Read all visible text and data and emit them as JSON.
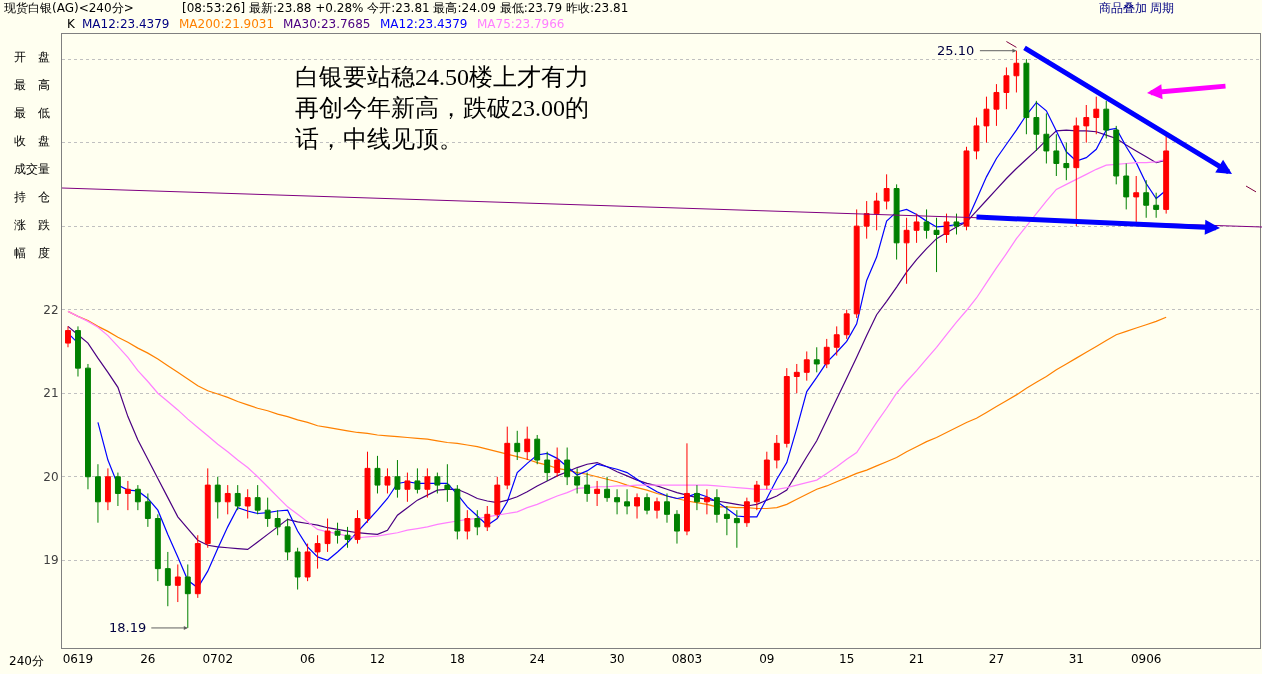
{
  "chart_data": {
    "type": "candlestick",
    "title": "现货白银(AG)<240分>",
    "subtitle": "[08:53:26] 最新:23.88 +0.28% 今开:23.81 最高:24.09 最低:23.79 昨收:23.81",
    "categories": [
      null,
      "0619",
      null,
      null,
      null,
      null,
      null,
      null,
      "26",
      null,
      null,
      null,
      null,
      null,
      null,
      "0702",
      null,
      null,
      null,
      null,
      null,
      null,
      null,
      null,
      "06",
      null,
      null,
      null,
      null,
      null,
      null,
      "12",
      null,
      null,
      null,
      null,
      null,
      null,
      null,
      "18",
      null,
      null,
      null,
      null,
      null,
      null,
      null,
      "24",
      null,
      null,
      null,
      null,
      null,
      null,
      null,
      "30",
      null,
      null,
      null,
      null,
      null,
      null,
      "0803",
      null,
      null,
      null,
      null,
      null,
      null,
      null,
      "09",
      null,
      null,
      null,
      null,
      null,
      null,
      null,
      "15",
      null,
      null,
      null,
      null,
      null,
      null,
      "21",
      null,
      null,
      null,
      null,
      null,
      null,
      null,
      "27",
      null,
      null,
      null,
      null,
      null,
      null,
      null,
      "31",
      null,
      null,
      null,
      null,
      null,
      null,
      "0906",
      null,
      null,
      null,
      null,
      null,
      null,
      null,
      null,
      null,
      null,
      null
    ],
    "ohlc": [
      [
        21.6,
        21.8,
        21.55,
        21.75
      ],
      [
        21.75,
        21.8,
        21.2,
        21.3
      ],
      [
        21.3,
        21.35,
        19.85,
        20.0
      ],
      [
        20.0,
        20.15,
        19.45,
        19.7
      ],
      [
        19.7,
        20.1,
        19.6,
        20.0
      ],
      [
        20.0,
        20.05,
        19.65,
        19.8
      ],
      [
        19.8,
        19.95,
        19.6,
        19.85
      ],
      [
        19.85,
        19.9,
        19.6,
        19.7
      ],
      [
        19.7,
        19.8,
        19.4,
        19.5
      ],
      [
        19.5,
        19.55,
        18.75,
        18.9
      ],
      [
        18.9,
        19.1,
        18.45,
        18.7
      ],
      [
        18.7,
        18.95,
        18.5,
        18.8
      ],
      [
        18.8,
        18.95,
        18.19,
        18.6
      ],
      [
        18.6,
        19.3,
        18.55,
        19.2
      ],
      [
        19.2,
        20.1,
        19.15,
        19.9
      ],
      [
        19.9,
        20.0,
        19.5,
        19.7
      ],
      [
        19.7,
        19.9,
        19.55,
        19.8
      ],
      [
        19.8,
        19.9,
        19.6,
        19.65
      ],
      [
        19.65,
        19.85,
        19.5,
        19.75
      ],
      [
        19.75,
        19.9,
        19.55,
        19.6
      ],
      [
        19.6,
        19.75,
        19.4,
        19.5
      ],
      [
        19.5,
        19.6,
        19.3,
        19.4
      ],
      [
        19.4,
        19.5,
        19.0,
        19.1
      ],
      [
        19.1,
        19.15,
        18.65,
        18.8
      ],
      [
        18.8,
        19.2,
        18.75,
        19.1
      ],
      [
        19.1,
        19.3,
        18.9,
        19.2
      ],
      [
        19.2,
        19.5,
        19.1,
        19.35
      ],
      [
        19.35,
        19.45,
        19.2,
        19.3
      ],
      [
        19.3,
        19.4,
        19.15,
        19.25
      ],
      [
        19.25,
        19.6,
        19.2,
        19.5
      ],
      [
        19.5,
        20.3,
        19.45,
        20.1
      ],
      [
        20.1,
        20.25,
        19.8,
        19.9
      ],
      [
        19.9,
        20.1,
        19.8,
        20.0
      ],
      [
        20.0,
        20.2,
        19.75,
        19.85
      ],
      [
        19.85,
        20.05,
        19.7,
        19.95
      ],
      [
        19.95,
        20.1,
        19.8,
        19.85
      ],
      [
        19.85,
        20.1,
        19.75,
        20.0
      ],
      [
        20.0,
        20.05,
        19.8,
        19.9
      ],
      [
        19.9,
        20.15,
        19.7,
        19.85
      ],
      [
        19.85,
        19.9,
        19.25,
        19.35
      ],
      [
        19.35,
        19.6,
        19.25,
        19.5
      ],
      [
        19.5,
        19.6,
        19.3,
        19.4
      ],
      [
        19.4,
        19.65,
        19.35,
        19.55
      ],
      [
        19.55,
        20.0,
        19.5,
        19.9
      ],
      [
        19.9,
        20.6,
        19.85,
        20.4
      ],
      [
        20.4,
        20.55,
        20.2,
        20.3
      ],
      [
        20.3,
        20.6,
        20.2,
        20.45
      ],
      [
        20.45,
        20.5,
        20.15,
        20.2
      ],
      [
        20.2,
        20.3,
        19.95,
        20.05
      ],
      [
        20.05,
        20.35,
        20.0,
        20.2
      ],
      [
        20.2,
        20.35,
        19.9,
        20.0
      ],
      [
        20.0,
        20.1,
        19.8,
        19.9
      ],
      [
        19.9,
        20.05,
        19.7,
        19.8
      ],
      [
        19.8,
        19.95,
        19.65,
        19.85
      ],
      [
        19.85,
        20.0,
        19.7,
        19.75
      ],
      [
        19.75,
        19.85,
        19.55,
        19.7
      ],
      [
        19.7,
        19.85,
        19.55,
        19.65
      ],
      [
        19.65,
        19.8,
        19.5,
        19.75
      ],
      [
        19.75,
        19.8,
        19.55,
        19.6
      ],
      [
        19.6,
        19.75,
        19.5,
        19.7
      ],
      [
        19.7,
        19.8,
        19.45,
        19.55
      ],
      [
        19.55,
        19.6,
        19.2,
        19.35
      ],
      [
        19.35,
        20.4,
        19.3,
        19.8
      ],
      [
        19.8,
        19.9,
        19.6,
        19.7
      ],
      [
        19.7,
        19.85,
        19.55,
        19.75
      ],
      [
        19.75,
        19.85,
        19.45,
        19.55
      ],
      [
        19.55,
        19.65,
        19.3,
        19.5
      ],
      [
        19.5,
        19.6,
        19.15,
        19.45
      ],
      [
        19.45,
        19.75,
        19.4,
        19.7
      ],
      [
        19.7,
        19.95,
        19.6,
        19.9
      ],
      [
        19.9,
        20.3,
        19.85,
        20.2
      ],
      [
        20.2,
        20.5,
        20.1,
        20.4
      ],
      [
        20.4,
        21.3,
        20.35,
        21.2
      ],
      [
        21.2,
        21.35,
        21.0,
        21.25
      ],
      [
        21.25,
        21.5,
        21.15,
        21.4
      ],
      [
        21.4,
        21.55,
        21.25,
        21.35
      ],
      [
        21.35,
        21.65,
        21.3,
        21.55
      ],
      [
        21.55,
        21.8,
        21.45,
        21.7
      ],
      [
        21.7,
        22.0,
        21.65,
        21.95
      ],
      [
        21.95,
        23.2,
        21.9,
        23.0
      ],
      [
        23.0,
        23.3,
        22.85,
        23.15
      ],
      [
        23.15,
        23.4,
        22.95,
        23.3
      ],
      [
        23.3,
        23.62,
        23.2,
        23.45
      ],
      [
        23.45,
        23.5,
        22.6,
        22.8
      ],
      [
        22.8,
        23.1,
        22.31,
        22.95
      ],
      [
        22.95,
        23.15,
        22.8,
        23.05
      ],
      [
        23.05,
        23.2,
        22.85,
        22.95
      ],
      [
        22.95,
        23.1,
        22.45,
        22.9
      ],
      [
        22.9,
        23.15,
        22.8,
        23.05
      ],
      [
        23.05,
        23.15,
        22.9,
        23.0
      ],
      [
        23.0,
        23.95,
        22.95,
        23.9
      ],
      [
        23.9,
        24.3,
        23.8,
        24.2
      ],
      [
        24.2,
        24.55,
        24.0,
        24.4
      ],
      [
        24.4,
        24.7,
        24.2,
        24.6
      ],
      [
        24.6,
        24.9,
        24.4,
        24.8
      ],
      [
        24.8,
        25.1,
        24.6,
        24.95
      ],
      [
        24.95,
        25.0,
        24.1,
        24.3
      ],
      [
        24.3,
        24.5,
        23.9,
        24.1
      ],
      [
        24.1,
        24.35,
        23.75,
        23.9
      ],
      [
        23.9,
        24.1,
        23.6,
        23.75
      ],
      [
        23.75,
        24.0,
        23.55,
        23.7
      ],
      [
        23.7,
        24.3,
        23.0,
        24.2
      ],
      [
        24.2,
        24.45,
        24.0,
        24.3
      ],
      [
        24.3,
        24.55,
        24.1,
        24.4
      ],
      [
        24.4,
        24.5,
        24.05,
        24.15
      ],
      [
        24.15,
        24.2,
        23.5,
        23.6
      ],
      [
        23.6,
        23.75,
        23.2,
        23.35
      ],
      [
        23.35,
        23.6,
        23.05,
        23.4
      ],
      [
        23.4,
        23.55,
        23.1,
        23.25
      ],
      [
        23.25,
        23.4,
        23.1,
        23.2
      ],
      [
        23.2,
        24.1,
        23.15,
        23.9
      ],
      null,
      null,
      null,
      null,
      null,
      null,
      null,
      null,
      null
    ],
    "colors": [
      "#ff0000",
      "#008000",
      "#008000",
      "#008000",
      "#ff0000",
      "#008000",
      "#ff0000",
      "#008000",
      "#008000",
      "#008000",
      "#008000",
      "#ff0000",
      "#008000",
      "#ff0000",
      "#ff0000",
      "#008000",
      "#ff0000",
      "#008000",
      "#ff0000",
      "#008000",
      "#008000",
      "#008000",
      "#008000",
      "#008000",
      "#ff0000",
      "#ff0000",
      "#ff0000",
      "#008000",
      "#008000",
      "#ff0000",
      "#ff0000",
      "#008000",
      "#ff0000",
      "#008000",
      "#ff0000",
      "#008000",
      "#ff0000",
      "#008000",
      "#008000",
      "#008000",
      "#ff0000",
      "#008000",
      "#ff0000",
      "#ff0000",
      "#ff0000",
      "#008000",
      "#ff0000",
      "#008000",
      "#008000",
      "#ff0000",
      "#008000",
      "#008000",
      "#008000",
      "#ff0000",
      "#008000",
      "#008000",
      "#008000",
      "#ff0000",
      "#008000",
      "#ff0000",
      "#008000",
      "#008000",
      "#ff0000",
      "#008000",
      "#ff0000",
      "#008000",
      "#008000",
      "#008000",
      "#ff0000",
      "#ff0000",
      "#ff0000",
      "#ff0000",
      "#ff0000",
      "#ff0000",
      "#ff0000",
      "#008000",
      "#ff0000",
      "#ff0000",
      "#ff0000",
      "#ff0000",
      "#ff0000",
      "#ff0000",
      "#ff0000",
      "#008000",
      "#ff0000",
      "#ff0000",
      "#008000",
      "#008000",
      "#ff0000",
      "#008000",
      "#ff0000",
      "#ff0000",
      "#ff0000",
      "#ff0000",
      "#ff0000",
      "#ff0000",
      "#008000",
      "#008000",
      "#008000",
      "#008000",
      "#008000",
      "#ff0000",
      "#ff0000",
      "#ff0000",
      "#008000",
      "#008000",
      "#008000",
      "#ff0000",
      "#008000",
      "#008000",
      "#ff0000",
      null,
      null,
      null,
      null,
      null,
      null,
      null,
      null,
      null
    ],
    "series": [
      {
        "name": "MA200:21.9031",
        "type": "line",
        "color": "#ff8000",
        "values": [
          21.98,
          21.92,
          21.87,
          21.8,
          21.74,
          21.67,
          21.61,
          21.54,
          21.48,
          21.41,
          21.33,
          21.25,
          21.17,
          21.09,
          21.03,
          20.99,
          20.95,
          20.9,
          20.86,
          20.82,
          20.79,
          20.75,
          20.72,
          20.68,
          20.65,
          20.61,
          20.59,
          20.57,
          20.55,
          20.53,
          20.52,
          20.5,
          20.49,
          20.48,
          20.47,
          20.46,
          20.45,
          20.43,
          20.41,
          20.4,
          20.38,
          20.36,
          20.33,
          20.3,
          20.27,
          20.24,
          20.21,
          20.17,
          20.14,
          20.1,
          20.08,
          20.05,
          20.03,
          20.0,
          19.97,
          19.94,
          19.9,
          19.87,
          19.84,
          19.8,
          19.77,
          19.74,
          19.71,
          19.69,
          19.67,
          19.64,
          19.64,
          19.63,
          19.63,
          19.62,
          19.62,
          19.63,
          19.67,
          19.73,
          19.79,
          19.85,
          19.89,
          19.94,
          19.99,
          20.04,
          20.08,
          20.13,
          20.18,
          20.23,
          20.3,
          20.36,
          20.42,
          20.47,
          20.53,
          20.59,
          20.65,
          20.7,
          20.77,
          20.84,
          20.91,
          20.98,
          21.06,
          21.13,
          21.2,
          21.28,
          21.35,
          21.42,
          21.49,
          21.56,
          21.63,
          21.7,
          21.74,
          21.78,
          21.82,
          21.86,
          21.91,
          null,
          null,
          null,
          null,
          null,
          null,
          null,
          null,
          null
        ]
      },
      {
        "name": "MA30:23.7685",
        "type": "line",
        "color": "#4b0082",
        "values": [
          21.8,
          21.7,
          21.6,
          21.42,
          21.25,
          21.07,
          20.72,
          20.44,
          20.21,
          19.98,
          19.75,
          19.52,
          19.38,
          19.24,
          19.18,
          19.16,
          19.15,
          19.14,
          19.13,
          19.22,
          19.31,
          19.4,
          19.49,
          19.46,
          19.44,
          19.42,
          19.39,
          19.37,
          19.35,
          19.33,
          19.32,
          19.31,
          19.36,
          19.54,
          19.63,
          19.72,
          19.78,
          19.84,
          19.85,
          19.85,
          19.8,
          19.74,
          19.71,
          19.69,
          19.72,
          19.76,
          19.82,
          19.89,
          19.95,
          20.01,
          20.06,
          20.11,
          20.15,
          20.17,
          20.12,
          20.06,
          20.01,
          19.96,
          19.92,
          19.89,
          19.85,
          19.81,
          19.78,
          19.75,
          19.73,
          19.71,
          19.69,
          19.67,
          19.65,
          19.67,
          19.72,
          19.77,
          19.84,
          20.04,
          20.24,
          20.43,
          20.68,
          20.93,
          21.18,
          21.43,
          21.69,
          21.94,
          22.1,
          22.27,
          22.45,
          22.6,
          22.73,
          22.85,
          22.92,
          22.99,
          23.05,
          23.18,
          23.31,
          23.44,
          23.57,
          23.69,
          23.8,
          23.91,
          24.03,
          24.14,
          24.15,
          24.14,
          24.14,
          24.13,
          24.09,
          24.05,
          23.97,
          23.9,
          23.83,
          23.76,
          23.79,
          null,
          null,
          null,
          null,
          null,
          null,
          null,
          null,
          null
        ]
      },
      {
        "name": "MA12:23.4379",
        "type": "line",
        "color": "#0000ff",
        "values": [
          21.72,
          21.6,
          null,
          20.65,
          20.2,
          19.9,
          19.84,
          19.83,
          19.74,
          19.6,
          19.31,
          19.04,
          18.76,
          18.67,
          18.87,
          19.14,
          19.4,
          19.63,
          19.59,
          19.56,
          19.57,
          19.59,
          19.6,
          19.35,
          19.16,
          19.04,
          19.0,
          19.1,
          19.21,
          19.34,
          19.47,
          19.6,
          19.74,
          19.92,
          19.94,
          19.92,
          19.92,
          19.92,
          19.92,
          19.79,
          19.64,
          19.53,
          19.42,
          19.5,
          19.7,
          20.05,
          20.16,
          20.26,
          20.28,
          20.22,
          20.12,
          20.02,
          20.07,
          20.15,
          20.12,
          20.09,
          20.05,
          19.97,
          19.89,
          19.82,
          19.77,
          19.74,
          19.76,
          19.8,
          19.76,
          19.7,
          19.62,
          19.53,
          19.52,
          19.52,
          19.74,
          19.97,
          20.17,
          20.58,
          21.02,
          21.19,
          21.37,
          21.49,
          21.62,
          21.83,
          22.35,
          22.63,
          23.06,
          23.17,
          23.2,
          23.14,
          23.06,
          22.99,
          23.0,
          23.02,
          23.05,
          23.32,
          23.59,
          23.81,
          23.98,
          24.15,
          24.33,
          24.48,
          24.38,
          24.14,
          23.89,
          23.78,
          23.82,
          23.92,
          24.15,
          24.17,
          23.95,
          23.76,
          23.51,
          23.33,
          23.43,
          null,
          null,
          null,
          null,
          null,
          null,
          null,
          null,
          null
        ]
      },
      {
        "name": "MA75:23.7966",
        "type": "line",
        "color": "#ff80ff",
        "values": [
          21.98,
          21.92,
          21.86,
          21.79,
          21.69,
          21.56,
          21.43,
          21.27,
          21.14,
          21.0,
          20.9,
          20.8,
          20.69,
          20.59,
          20.49,
          20.39,
          20.3,
          20.2,
          20.11,
          20.0,
          19.88,
          19.76,
          19.64,
          19.55,
          19.46,
          19.37,
          19.34,
          19.32,
          19.29,
          19.27,
          19.28,
          19.29,
          19.31,
          19.33,
          19.36,
          19.38,
          19.4,
          19.43,
          19.45,
          19.47,
          19.49,
          19.5,
          19.52,
          19.54,
          19.56,
          19.58,
          19.63,
          19.67,
          19.72,
          19.77,
          19.81,
          19.86,
          19.87,
          19.88,
          19.88,
          19.89,
          19.89,
          19.9,
          19.9,
          19.9,
          19.9,
          19.9,
          19.9,
          19.9,
          19.9,
          19.89,
          19.88,
          19.87,
          19.86,
          19.85,
          19.85,
          19.85,
          19.87,
          19.9,
          19.93,
          19.96,
          20.04,
          20.12,
          20.21,
          20.29,
          20.47,
          20.65,
          20.82,
          21.0,
          21.14,
          21.27,
          21.41,
          21.55,
          21.7,
          21.85,
          21.99,
          22.14,
          22.32,
          22.5,
          22.67,
          22.85,
          23.0,
          23.15,
          23.3,
          23.44,
          23.5,
          23.56,
          23.62,
          23.68,
          23.73,
          23.74,
          23.75,
          23.76,
          23.76,
          23.77,
          23.8,
          null,
          null,
          null,
          null,
          null,
          null,
          null,
          null,
          null
        ]
      },
      {
        "type": "line",
        "color": "#800040",
        "values": [
          null,
          null,
          null,
          null,
          null,
          null,
          null,
          null,
          null,
          null,
          null,
          null,
          null,
          null,
          null,
          null,
          null,
          null,
          null,
          null,
          null,
          null,
          null,
          null,
          null,
          null,
          null,
          null,
          null,
          null,
          null,
          null,
          null,
          null,
          null,
          null,
          null,
          null,
          null,
          null,
          null,
          null,
          null,
          null,
          null,
          null,
          null,
          null,
          null,
          null,
          null,
          null,
          null,
          null,
          null,
          null,
          null,
          null,
          null,
          null,
          null,
          null,
          null,
          null,
          null,
          null,
          null,
          null,
          null,
          null,
          null,
          null,
          null,
          null,
          null,
          null,
          null,
          null,
          null,
          null,
          null,
          null,
          null,
          null,
          null,
          null,
          null,
          null,
          null,
          null,
          null,
          null,
          null,
          null,
          25.21,
          25.14,
          null,
          null,
          null,
          null,
          null,
          null,
          null,
          null,
          null,
          null,
          null,
          null,
          null,
          null,
          null,
          null,
          null,
          null,
          null,
          null,
          null,
          null,
          23.48,
          23.41
        ]
      }
    ],
    "annotations": [
      "K",
      "MA12:23.4379",
      "白银要站稳24.50楼上才有力再创今年新高，跌破23.00的话，中线见顶。",
      "25.10",
      "18.19",
      "商品叠加",
      "周期",
      "开　盘",
      "最　高",
      "最　低",
      "收　盘",
      "成交量",
      "持　仓",
      "涨　跌",
      "幅　度",
      "240分"
    ],
    "ylim": [
      17.95,
      25.3
    ],
    "yticks": [
      19,
      20,
      21,
      22,
      {
        "value": 23,
        "label": null
      },
      {
        "value": 24,
        "label": null
      },
      {
        "value": 25,
        "label": null
      }
    ],
    "grid": "y"
  }
}
